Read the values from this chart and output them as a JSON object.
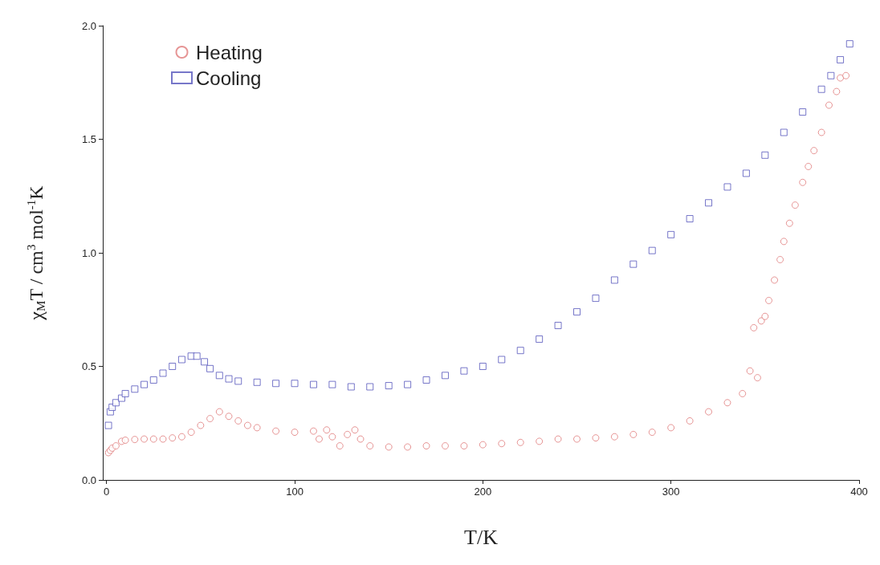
{
  "chart_data": {
    "type": "scatter",
    "xlabel": "T/K",
    "ylabel": "χ$_{M}$T / cm$^{3}$ mol$^{-1}$K",
    "xlim": [
      -2,
      400
    ],
    "ylim": [
      0,
      2
    ],
    "xticks": [
      0,
      100,
      200,
      300,
      400
    ],
    "yticks": [
      {
        "value": 0,
        "label": "0.0"
      },
      {
        "value": 0.5,
        "label": "0.5"
      },
      {
        "value": 1,
        "label": "1.0"
      },
      {
        "value": 1.5,
        "label": "1.5"
      },
      {
        "value": 2,
        "label": "2.0"
      }
    ],
    "grid": false,
    "legend": "top left",
    "series": [
      {
        "name": "Heating",
        "color": "#e07a7a",
        "marker": "circle",
        "x": [
          1,
          2,
          3,
          5,
          8,
          10,
          15,
          20,
          25,
          30,
          35,
          40,
          45,
          50,
          55,
          60,
          65,
          70,
          75,
          80,
          90,
          100,
          110,
          113,
          117,
          120,
          124,
          128,
          132,
          135,
          140,
          150,
          160,
          170,
          180,
          190,
          200,
          210,
          220,
          230,
          240,
          250,
          260,
          270,
          280,
          290,
          300,
          310,
          320,
          330,
          338,
          342,
          344,
          346,
          348,
          350,
          352,
          355,
          358,
          360,
          363,
          366,
          370,
          373,
          376,
          380,
          384,
          388,
          390,
          393
        ],
        "values": [
          0.12,
          0.13,
          0.14,
          0.15,
          0.17,
          0.175,
          0.178,
          0.18,
          0.18,
          0.18,
          0.185,
          0.19,
          0.21,
          0.24,
          0.27,
          0.3,
          0.28,
          0.26,
          0.24,
          0.23,
          0.215,
          0.21,
          0.215,
          0.18,
          0.22,
          0.19,
          0.15,
          0.2,
          0.22,
          0.18,
          0.15,
          0.145,
          0.145,
          0.15,
          0.15,
          0.15,
          0.155,
          0.16,
          0.165,
          0.17,
          0.18,
          0.18,
          0.185,
          0.19,
          0.2,
          0.21,
          0.23,
          0.26,
          0.3,
          0.34,
          0.38,
          0.48,
          0.67,
          0.45,
          0.7,
          0.72,
          0.79,
          0.88,
          0.97,
          1.05,
          1.13,
          1.21,
          1.31,
          1.38,
          1.45,
          1.53,
          1.65,
          1.71,
          1.77,
          1.78
        ]
      },
      {
        "name": "Cooling",
        "color": "#5555bb",
        "marker": "square",
        "x": [
          1,
          2,
          3,
          5,
          8,
          10,
          15,
          20,
          25,
          30,
          35,
          40,
          45,
          48,
          52,
          55,
          60,
          65,
          70,
          80,
          90,
          100,
          110,
          120,
          130,
          140,
          150,
          160,
          170,
          180,
          190,
          200,
          210,
          220,
          230,
          240,
          250,
          260,
          270,
          280,
          290,
          300,
          310,
          320,
          330,
          340,
          350,
          360,
          370,
          380,
          385,
          390,
          395
        ],
        "values": [
          0.24,
          0.3,
          0.32,
          0.34,
          0.36,
          0.38,
          0.4,
          0.42,
          0.44,
          0.47,
          0.5,
          0.53,
          0.545,
          0.545,
          0.52,
          0.49,
          0.46,
          0.445,
          0.435,
          0.43,
          0.425,
          0.425,
          0.42,
          0.42,
          0.41,
          0.41,
          0.415,
          0.42,
          0.44,
          0.46,
          0.48,
          0.5,
          0.53,
          0.57,
          0.62,
          0.68,
          0.74,
          0.8,
          0.88,
          0.95,
          1.01,
          1.08,
          1.15,
          1.22,
          1.29,
          1.35,
          1.43,
          1.53,
          1.62,
          1.72,
          1.78,
          1.85,
          1.92
        ]
      }
    ]
  }
}
